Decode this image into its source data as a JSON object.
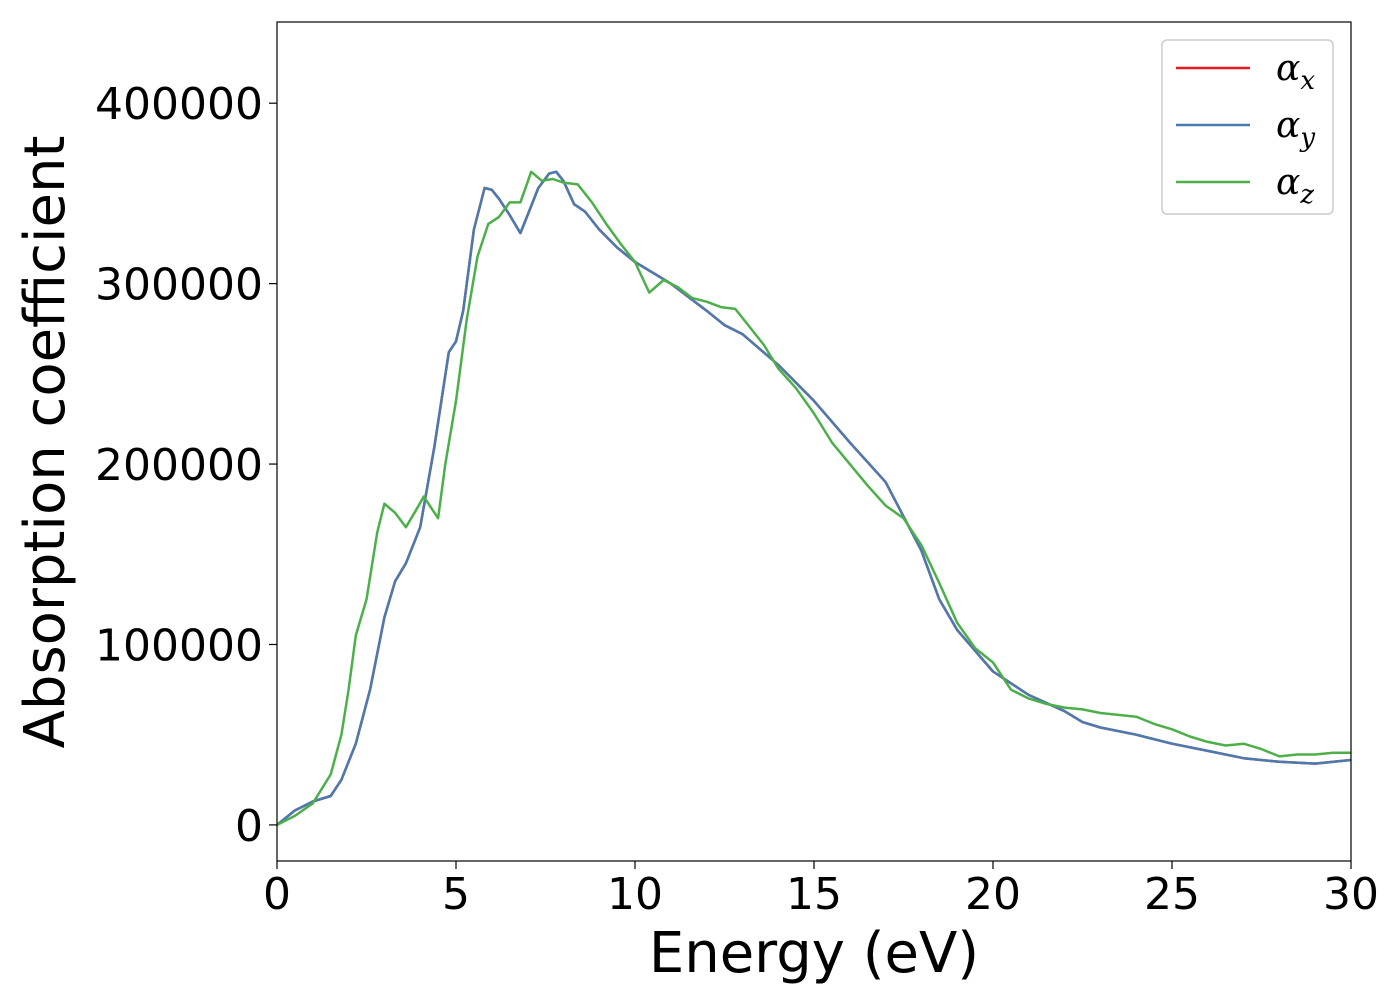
{
  "chart_data": {
    "type": "line",
    "title": "",
    "xlabel": "Energy (eV)",
    "ylabel": "Absorption coefficient",
    "xlim": [
      0,
      30
    ],
    "ylim": [
      -20000,
      445000
    ],
    "xticks": [
      0,
      5,
      10,
      15,
      20,
      25,
      30
    ],
    "yticks": [
      0,
      100000,
      200000,
      300000,
      400000
    ],
    "grid": false,
    "legend_position": "top-right",
    "series": [
      {
        "name": "α",
        "subscript": "x",
        "color": "#e41a1c",
        "x": [
          0,
          0.5,
          1.0,
          1.5,
          1.8,
          2.2,
          2.6,
          3.0,
          3.3,
          3.6,
          4.0,
          4.4,
          4.8,
          5.0,
          5.2,
          5.5,
          5.8,
          6.0,
          6.2,
          6.5,
          6.8,
          7.0,
          7.3,
          7.6,
          7.8,
          8.0,
          8.3,
          8.6,
          9.0,
          9.5,
          10.0,
          11.0,
          12.0,
          12.5,
          13.0,
          14.0,
          15.0,
          16.0,
          17.0,
          18.0,
          18.5,
          19.0,
          20.0,
          21.0,
          22.0,
          22.5,
          23.0,
          24.0,
          25.0,
          26.0,
          27.0,
          28.0,
          29.0,
          30.0
        ],
        "values": [
          0,
          8000,
          13000,
          16000,
          25000,
          45000,
          75000,
          115000,
          135000,
          145000,
          165000,
          210000,
          262000,
          268000,
          285000,
          330000,
          353000,
          352000,
          347000,
          338000,
          328000,
          338000,
          353000,
          361000,
          362000,
          357000,
          344000,
          340000,
          330000,
          320000,
          312000,
          300000,
          285000,
          277000,
          272000,
          255000,
          235000,
          212000,
          190000,
          152000,
          125000,
          108000,
          85000,
          72000,
          63000,
          57000,
          54000,
          50000,
          45000,
          41000,
          37000,
          35000,
          34000,
          36000
        ]
      },
      {
        "name": "α",
        "subscript": "y",
        "color": "#4a7bb0",
        "x": [
          0,
          0.5,
          1.0,
          1.5,
          1.8,
          2.2,
          2.6,
          3.0,
          3.3,
          3.6,
          4.0,
          4.4,
          4.8,
          5.0,
          5.2,
          5.5,
          5.8,
          6.0,
          6.2,
          6.5,
          6.8,
          7.0,
          7.3,
          7.6,
          7.8,
          8.0,
          8.3,
          8.6,
          9.0,
          9.5,
          10.0,
          11.0,
          12.0,
          12.5,
          13.0,
          14.0,
          15.0,
          16.0,
          17.0,
          18.0,
          18.5,
          19.0,
          20.0,
          21.0,
          22.0,
          22.5,
          23.0,
          24.0,
          25.0,
          26.0,
          27.0,
          28.0,
          29.0,
          30.0
        ],
        "values": [
          0,
          8000,
          13000,
          16000,
          25000,
          45000,
          75000,
          115000,
          135000,
          145000,
          165000,
          210000,
          262000,
          268000,
          285000,
          330000,
          353000,
          352000,
          347000,
          338000,
          328000,
          338000,
          353000,
          361000,
          362000,
          357000,
          344000,
          340000,
          330000,
          320000,
          312000,
          300000,
          285000,
          277000,
          272000,
          255000,
          235000,
          212000,
          190000,
          152000,
          125000,
          108000,
          85000,
          72000,
          63000,
          57000,
          54000,
          50000,
          45000,
          41000,
          37000,
          35000,
          34000,
          36000
        ]
      },
      {
        "name": "α",
        "subscript": "z",
        "color": "#4daf4a",
        "x": [
          0,
          0.5,
          1.0,
          1.5,
          1.8,
          2.0,
          2.2,
          2.5,
          2.8,
          3.0,
          3.3,
          3.6,
          3.9,
          4.1,
          4.3,
          4.5,
          4.7,
          5.0,
          5.3,
          5.6,
          5.9,
          6.2,
          6.5,
          6.8,
          7.1,
          7.4,
          7.7,
          8.0,
          8.4,
          8.8,
          9.2,
          9.6,
          10.0,
          10.4,
          10.8,
          11.2,
          11.6,
          12.0,
          12.4,
          12.8,
          13.2,
          13.6,
          14.0,
          14.5,
          15.0,
          15.5,
          16.0,
          16.5,
          17.0,
          17.5,
          18.0,
          18.5,
          19.0,
          19.5,
          20.0,
          20.5,
          21.0,
          21.5,
          22.0,
          22.5,
          23.0,
          23.5,
          24.0,
          24.5,
          25.0,
          25.5,
          26.0,
          26.5,
          27.0,
          27.5,
          28.0,
          28.5,
          29.0,
          29.5,
          30.0
        ],
        "values": [
          0,
          5000,
          12000,
          28000,
          50000,
          75000,
          105000,
          125000,
          162000,
          178000,
          173000,
          165000,
          175000,
          182000,
          176000,
          170000,
          200000,
          235000,
          280000,
          315000,
          333000,
          337000,
          345000,
          345000,
          362000,
          357000,
          358000,
          356000,
          355000,
          345000,
          333000,
          322000,
          312000,
          295000,
          302000,
          298000,
          292000,
          290000,
          287000,
          286000,
          276000,
          266000,
          253000,
          242000,
          228000,
          212000,
          200000,
          188000,
          177000,
          170000,
          155000,
          134000,
          112000,
          98000,
          90000,
          75000,
          70000,
          67000,
          65000,
          64000,
          62000,
          61000,
          60000,
          56000,
          53000,
          49000,
          46000,
          44000,
          45000,
          42000,
          38000,
          39000,
          39000,
          40000,
          40000
        ]
      }
    ]
  }
}
